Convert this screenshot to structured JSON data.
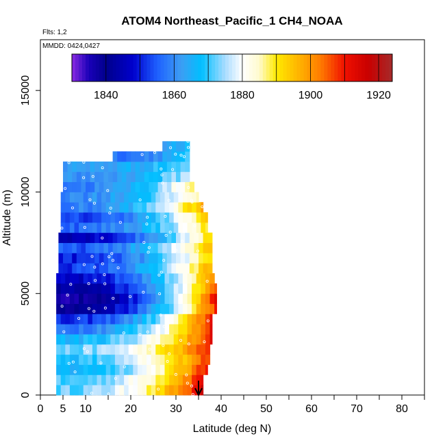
{
  "chart_data": {
    "type": "heatmap",
    "title": "ATOM4 Northeast_Pacific_1 CH4_NOAA",
    "subtitle_lines": [
      "Flts: 1,2",
      "MMDD: 0424,0427"
    ],
    "xlabel": "Latitude (deg N)",
    "ylabel": "Altitude (m)",
    "xlim": [
      0,
      85
    ],
    "ylim": [
      0,
      17500
    ],
    "xticks": [
      0,
      5,
      10,
      20,
      30,
      40,
      50,
      60,
      70,
      80
    ],
    "xtick_labels": [
      "0",
      "5",
      "10",
      "20",
      "30",
      "40",
      "50",
      "60",
      "70",
      "80"
    ],
    "yticks": [
      0,
      5000,
      10000,
      15000
    ],
    "ytick_labels": [
      "0",
      "5000",
      "10000",
      "15000"
    ],
    "colorbar": {
      "range": [
        1830,
        1924
      ],
      "ticks": [
        1840,
        1860,
        1880,
        1900,
        1920
      ],
      "tick_labels": [
        "1840",
        "1860",
        "1880",
        "1900",
        "1920"
      ],
      "stops": [
        {
          "value": 1830,
          "color": "#8a2be2"
        },
        {
          "value": 1835,
          "color": "#1a00b8"
        },
        {
          "value": 1840,
          "color": "#00008b"
        },
        {
          "value": 1848,
          "color": "#0000cd"
        },
        {
          "value": 1855,
          "color": "#1e60ff"
        },
        {
          "value": 1862,
          "color": "#3d9df3"
        },
        {
          "value": 1868,
          "color": "#00bfff"
        },
        {
          "value": 1875,
          "color": "#aadcff"
        },
        {
          "value": 1880,
          "color": "#ffffff"
        },
        {
          "value": 1885,
          "color": "#fffacd"
        },
        {
          "value": 1890,
          "color": "#ffea00"
        },
        {
          "value": 1897,
          "color": "#ffb000"
        },
        {
          "value": 1903,
          "color": "#ff7b00"
        },
        {
          "value": 1910,
          "color": "#f01000"
        },
        {
          "value": 1917,
          "color": "#c80000"
        },
        {
          "value": 1924,
          "color": "#a52a2a"
        }
      ]
    },
    "arrow_marker": {
      "latitude": 35
    },
    "altitude_bands": [
      {
        "alt": [
          0,
          500
        ],
        "lat": [
          3.5,
          36
        ],
        "ch4_south": 1872,
        "ch4_north": 1916
      },
      {
        "alt": [
          500,
          1000
        ],
        "lat": [
          3.5,
          36
        ],
        "ch4_south": 1870,
        "ch4_north": 1914
      },
      {
        "alt": [
          1000,
          1500
        ],
        "lat": [
          3.5,
          37
        ],
        "ch4_south": 1866,
        "ch4_north": 1912
      },
      {
        "alt": [
          1500,
          2000
        ],
        "lat": [
          3.5,
          37.5
        ],
        "ch4_south": 1868,
        "ch4_north": 1911
      },
      {
        "alt": [
          2000,
          2500
        ],
        "lat": [
          3.5,
          37.5
        ],
        "ch4_south": 1872,
        "ch4_north": 1912
      },
      {
        "alt": [
          2500,
          3000
        ],
        "lat": [
          3.5,
          38
        ],
        "ch4_south": 1866,
        "ch4_north": 1913
      },
      {
        "alt": [
          3000,
          3500
        ],
        "lat": [
          3.5,
          38
        ],
        "ch4_south": 1858,
        "ch4_north": 1914
      },
      {
        "alt": [
          3500,
          4000
        ],
        "lat": [
          3.5,
          38
        ],
        "ch4_south": 1850,
        "ch4_north": 1913
      },
      {
        "alt": [
          4000,
          4500
        ],
        "lat": [
          3.5,
          39
        ],
        "ch4_south": 1840,
        "ch4_north": 1912
      },
      {
        "alt": [
          4500,
          5000
        ],
        "lat": [
          3.5,
          39
        ],
        "ch4_south": 1836,
        "ch4_north": 1914
      },
      {
        "alt": [
          5000,
          5500
        ],
        "lat": [
          3.5,
          39
        ],
        "ch4_south": 1842,
        "ch4_north": 1910
      },
      {
        "alt": [
          5500,
          6000
        ],
        "lat": [
          3.5,
          38.5
        ],
        "ch4_south": 1846,
        "ch4_north": 1904
      },
      {
        "alt": [
          6000,
          6500
        ],
        "lat": [
          4,
          38
        ],
        "ch4_south": 1852,
        "ch4_north": 1900
      },
      {
        "alt": [
          6500,
          7000
        ],
        "lat": [
          4,
          38
        ],
        "ch4_south": 1850,
        "ch4_north": 1896
      },
      {
        "alt": [
          7000,
          7500
        ],
        "lat": [
          4,
          38
        ],
        "ch4_south": 1854,
        "ch4_north": 1900
      },
      {
        "alt": [
          7500,
          8000
        ],
        "lat": [
          4,
          38
        ],
        "ch4_south": 1846,
        "ch4_north": 1896
      },
      {
        "alt": [
          8000,
          8500
        ],
        "lat": [
          4.5,
          37
        ],
        "ch4_south": 1856,
        "ch4_north": 1892
      },
      {
        "alt": [
          8500,
          9000
        ],
        "lat": [
          4.5,
          37
        ],
        "ch4_south": 1852,
        "ch4_north": 1896
      },
      {
        "alt": [
          9000,
          9500
        ],
        "lat": [
          4.5,
          36
        ],
        "ch4_south": 1858,
        "ch4_north": 1900
      },
      {
        "alt": [
          9500,
          10000
        ],
        "lat": [
          4.5,
          35
        ],
        "ch4_south": 1860,
        "ch4_north": 1888
      },
      {
        "alt": [
          10000,
          10500
        ],
        "lat": [
          5,
          34
        ],
        "ch4_south": 1858,
        "ch4_north": 1890
      },
      {
        "alt": [
          10500,
          11000
        ],
        "lat": [
          5,
          33
        ],
        "ch4_south": 1860,
        "ch4_north": 1878
      },
      {
        "alt": [
          11000,
          11500
        ],
        "lat": [
          5,
          33
        ],
        "ch4_south": 1862,
        "ch4_north": 1874
      },
      {
        "alt": [
          11500,
          12000
        ],
        "lat": [
          16,
          33
        ],
        "ch4_south": 1858,
        "ch4_north": 1872
      },
      {
        "alt": [
          12000,
          12500
        ],
        "lat": [
          27,
          33
        ],
        "ch4_south": 1862,
        "ch4_north": 1872
      }
    ]
  }
}
